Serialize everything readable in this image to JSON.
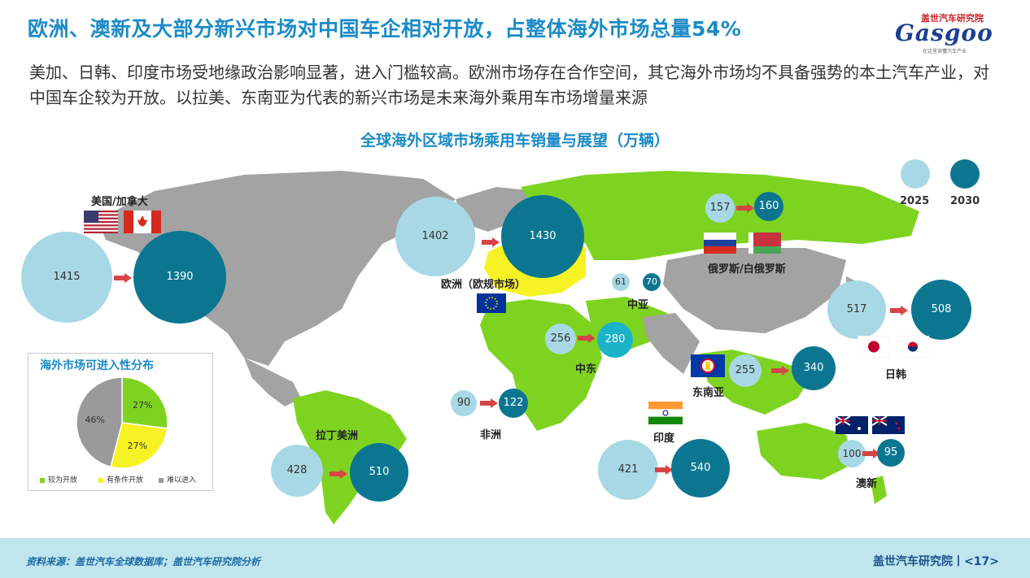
{
  "title": "欧洲、澳新及大部分新兴市场对中国车企相对开放，占整体海外市场总量54%",
  "logo": {
    "top": "盖世汽车研究院",
    "main": "Gasgoo",
    "sub": "在这里读懂汽车产业"
  },
  "subtitle": "美加、日韩、印度市场受地缘政治影响显著，进入门槛较高。欧洲市场存在合作空间，其它海外市场均不具备强势的本土汽车产业，对中国车企较为开放。以拉美、东南亚为代表的新兴市场是未来海外乘用车市场增量来源",
  "chart_data": [
    {
      "type": "bubble",
      "title": "全球海外区域市场乘用车销量与展望（万辆）",
      "legend": [
        "2025",
        "2030"
      ],
      "colors": {
        "2025": "#a8d8e6",
        "2030": "#0c7691",
        "open": "#7ed321",
        "conditional": "#f7f224",
        "restricted": "#9a9a9a"
      },
      "regions": [
        {
          "name": "美国/加拿大",
          "v2025": 1415,
          "v2030": 1390
        },
        {
          "name": "欧洲（欧规市场）",
          "v2025": 1402,
          "v2030": 1430
        },
        {
          "name": "俄罗斯/白俄罗斯",
          "v2025": 157,
          "v2030": 160
        },
        {
          "name": "中亚",
          "v2025": 61,
          "v2030": 70
        },
        {
          "name": "日韩",
          "v2025": 517,
          "v2030": 508
        },
        {
          "name": "中东",
          "v2025": 256,
          "v2030": 280
        },
        {
          "name": "东南亚",
          "v2025": 255,
          "v2030": 340
        },
        {
          "name": "非洲",
          "v2025": 90,
          "v2030": 122
        },
        {
          "name": "印度",
          "v2025": 421,
          "v2030": 540
        },
        {
          "name": "拉丁美洲",
          "v2025": 428,
          "v2030": 510
        },
        {
          "name": "澳新",
          "v2025": 100,
          "v2030": 95
        }
      ]
    },
    {
      "type": "pie",
      "title": "海外市场可进入性分布",
      "slices": [
        {
          "label": "较为开放",
          "value": 27,
          "color": "#7ed321"
        },
        {
          "label": "有条件开放",
          "value": 27,
          "color": "#f7f224"
        },
        {
          "label": "难以进入",
          "value": 46,
          "color": "#9a9a9a"
        }
      ]
    }
  ],
  "footer": {
    "source": "资料来源：盖世汽车全球数据库；盖世汽车研究院分析",
    "page": "盖世汽车研究院丨<17>"
  }
}
